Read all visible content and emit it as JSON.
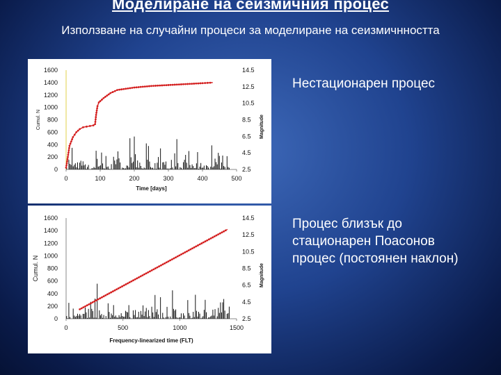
{
  "slide": {
    "title": "Моделиране на сеизмичния процес",
    "subtitle": "Използване на случайни процеси за моделиране на сеизмичнността",
    "caption_top": "Нестационарен процес",
    "caption_bottom": "Процес близък до стационарен Поасонов процес (постоянен наклон)"
  },
  "chart_data": [
    {
      "type": "line",
      "xlabel": "Time [days]",
      "ylabel": "Cumul. N",
      "y2label": "Magnitude",
      "xlim": [
        0,
        500
      ],
      "ylim": [
        0,
        1600
      ],
      "y2lim": [
        2.5,
        14.5
      ],
      "x_ticks": [
        "0",
        "100",
        "200",
        "300",
        "400",
        "500"
      ],
      "y_ticks": [
        "0",
        "200",
        "400",
        "600",
        "800",
        "1000",
        "1200",
        "1400",
        "1600"
      ],
      "y2_ticks": [
        "2.5",
        "4.5",
        "6.5",
        "8.5",
        "10.5",
        "12.5",
        "14.5"
      ],
      "series": [
        {
          "role": "cumulative",
          "color": "#d42020",
          "x": [
            0,
            5,
            10,
            20,
            30,
            40,
            50,
            60,
            70,
            80,
            85,
            88,
            92,
            96,
            100,
            110,
            130,
            150,
            200,
            250,
            300,
            350,
            400,
            430
          ],
          "y": [
            30,
            200,
            380,
            520,
            600,
            650,
            680,
            690,
            700,
            710,
            730,
            880,
            1020,
            1080,
            1100,
            1150,
            1230,
            1280,
            1320,
            1345,
            1360,
            1375,
            1390,
            1400
          ]
        },
        {
          "role": "magnitude",
          "color": "#111111",
          "pattern": "vertical spikes, mostly 2.5–4.5, occasional peaks near 6.5"
        }
      ]
    },
    {
      "type": "line",
      "xlabel": "Frequency-linearized time (FLT)",
      "ylabel": "Cumul. N",
      "y2label": "Magnitude",
      "xlim": [
        0,
        1500
      ],
      "ylim": [
        0,
        1600
      ],
      "y2lim": [
        2.5,
        14.5
      ],
      "x_ticks": [
        "0",
        "500",
        "1000",
        "1500"
      ],
      "y_ticks": [
        "0",
        "200",
        "400",
        "600",
        "800",
        "1000",
        "1200",
        "1400",
        "1600"
      ],
      "y2_ticks": [
        "2.5",
        "4.5",
        "6.5",
        "8.5",
        "10.5",
        "12.5",
        "14.5"
      ],
      "series": [
        {
          "role": "cumulative",
          "color": "#d42020",
          "x": [
            120,
            1420
          ],
          "y": [
            150,
            1420
          ]
        },
        {
          "role": "magnitude",
          "color": "#111111",
          "pattern": "vertical spikes, mostly 2.5–4.5, occasional peaks near 6.5"
        }
      ]
    }
  ]
}
